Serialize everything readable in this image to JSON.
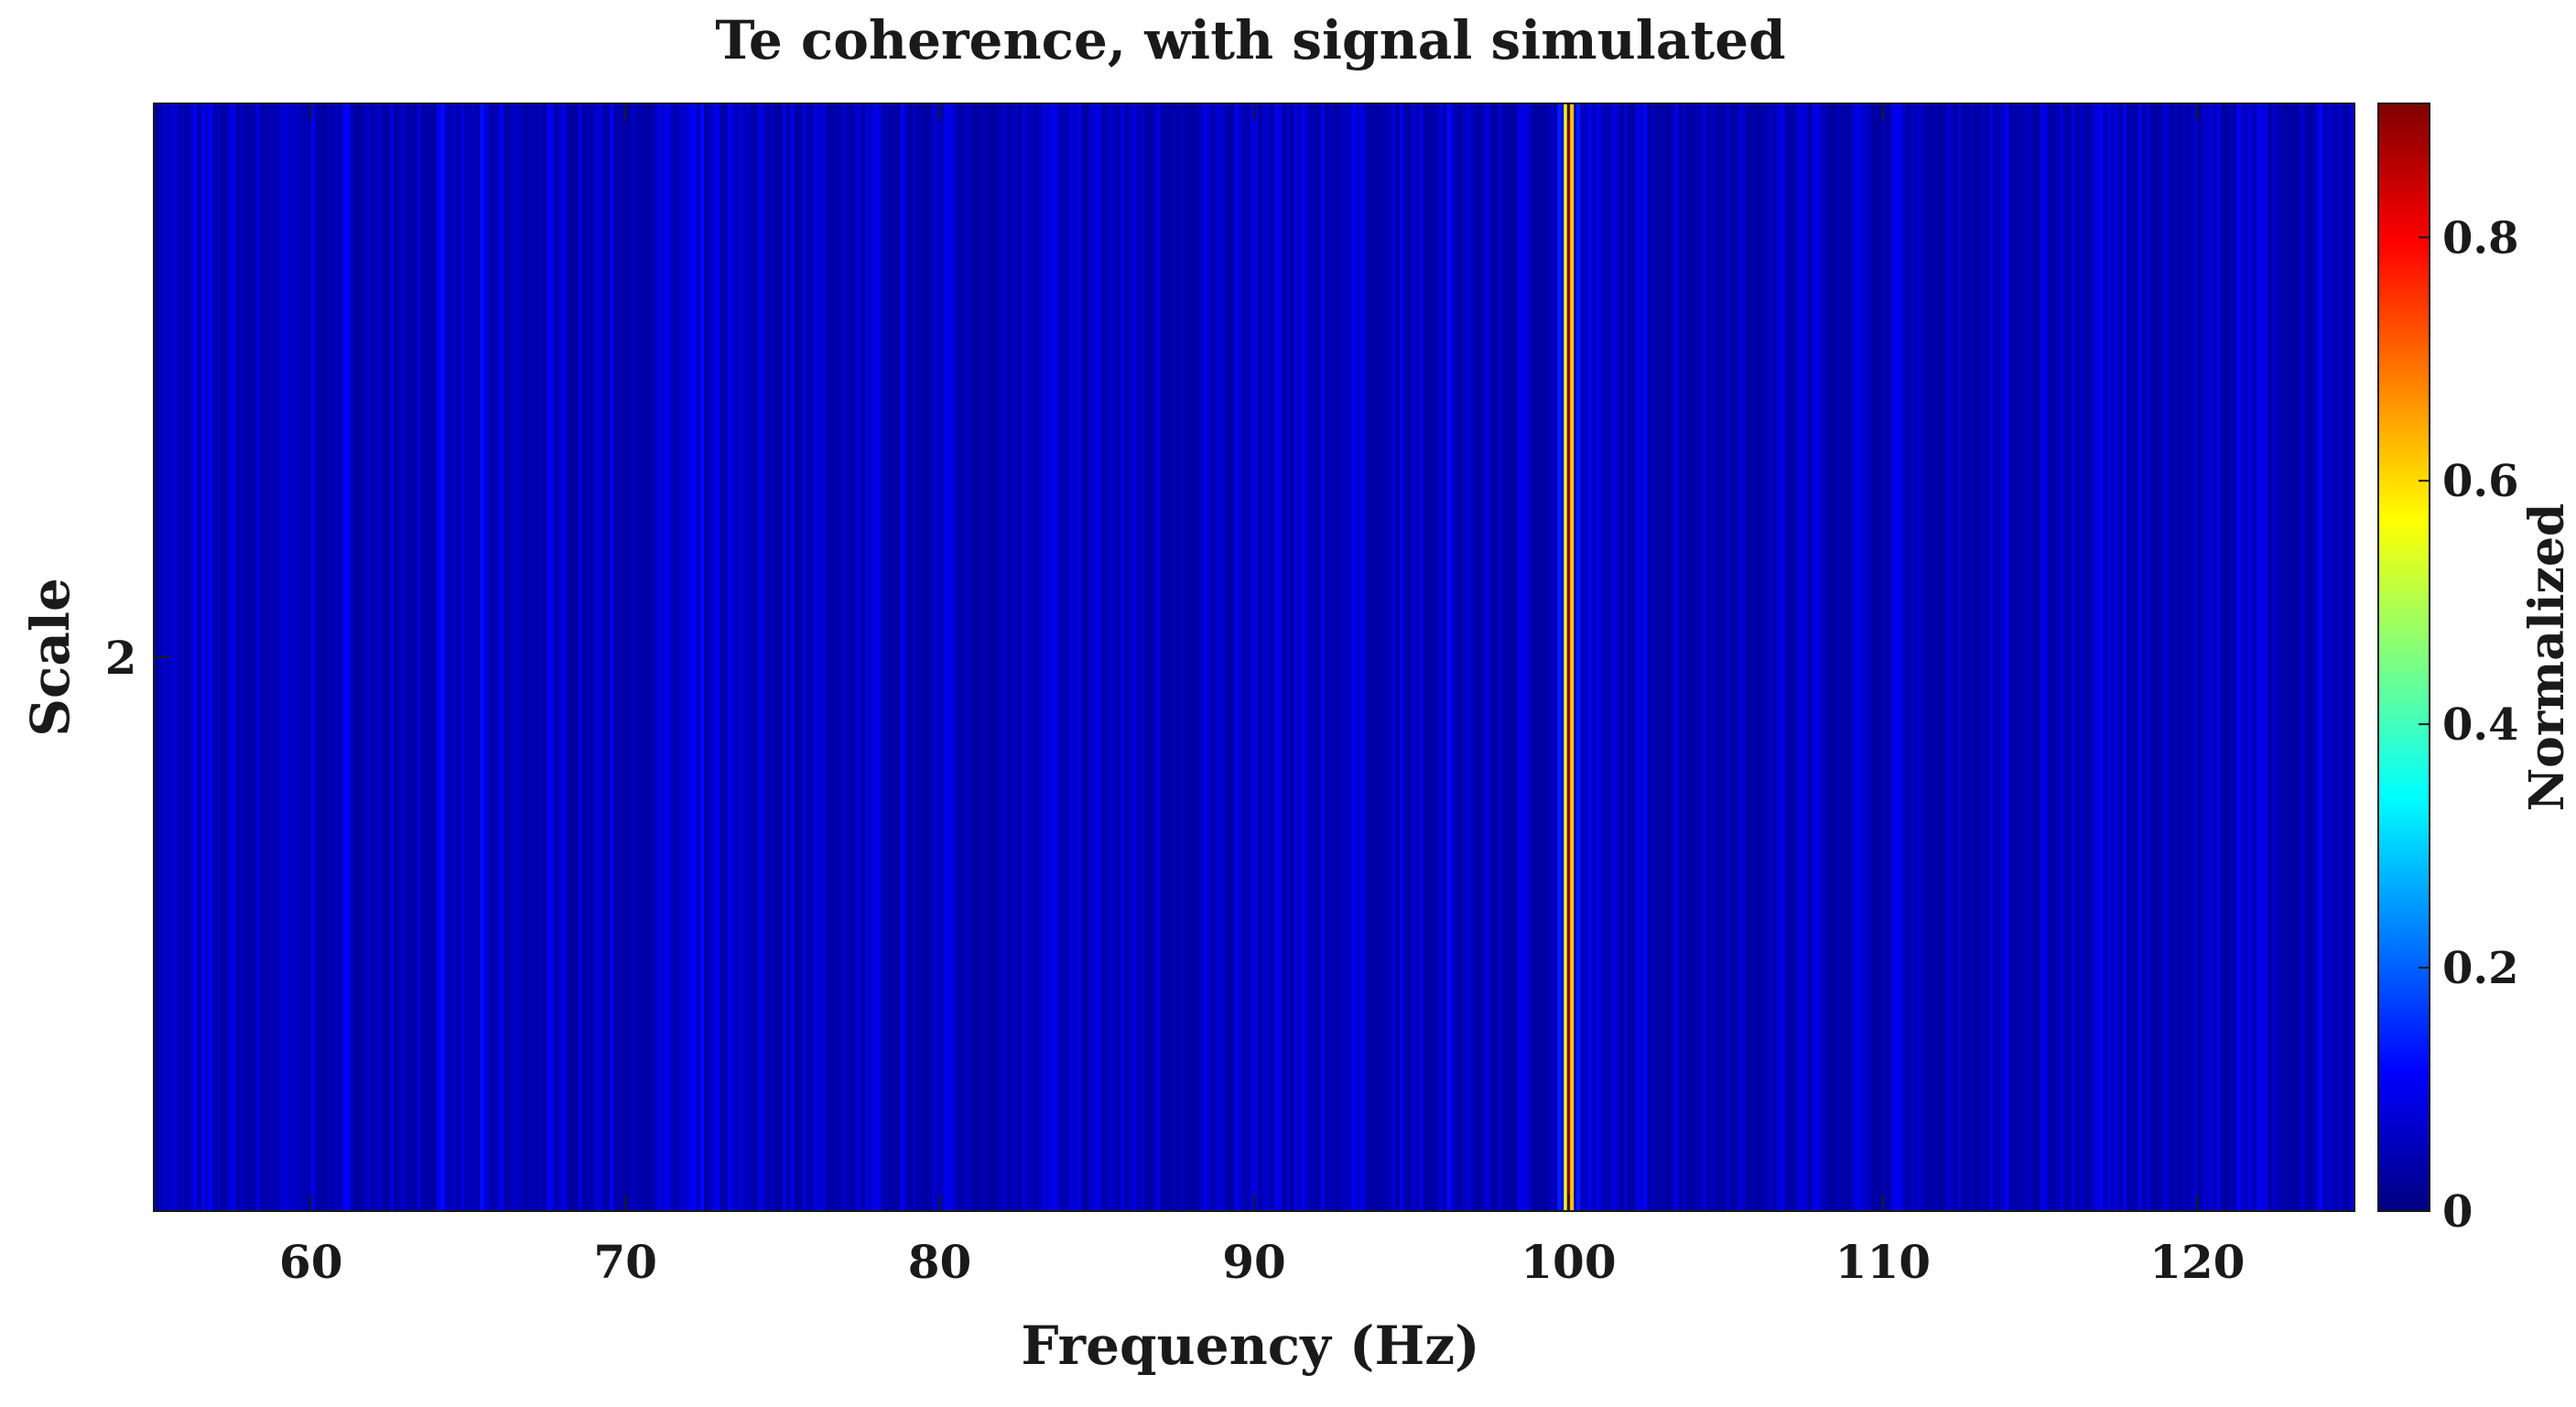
{
  "chart_data": {
    "type": "heatmap",
    "title": "Te coherence, with signal simulated",
    "xlabel": "Frequency (Hz)",
    "ylabel": "Scale",
    "xlim": [
      55,
      125
    ],
    "x_ticks": [
      60,
      70,
      80,
      90,
      100,
      110,
      120
    ],
    "y_ticks": [
      2
    ],
    "colorbar": {
      "label": "Normalized",
      "colormap": "jet",
      "range": [
        0,
        0.91
      ],
      "ticks": [
        0,
        0.2,
        0.4,
        0.6,
        0.8
      ]
    },
    "scale": 2,
    "background_level": 0.03,
    "noise_amplitude": 0.06,
    "x": [
      99.5,
      99.7,
      99.9,
      100.0,
      100.1,
      100.3,
      100.5
    ],
    "values": [
      0.06,
      0.14,
      0.55,
      0.91,
      0.62,
      0.14,
      0.06
    ]
  },
  "colors": {
    "colormap_stops": [
      "#00007f",
      "#0000ff",
      "#007fff",
      "#00ffff",
      "#7fff7f",
      "#ffff00",
      "#ff7f00",
      "#ff0000",
      "#7f0000"
    ]
  }
}
